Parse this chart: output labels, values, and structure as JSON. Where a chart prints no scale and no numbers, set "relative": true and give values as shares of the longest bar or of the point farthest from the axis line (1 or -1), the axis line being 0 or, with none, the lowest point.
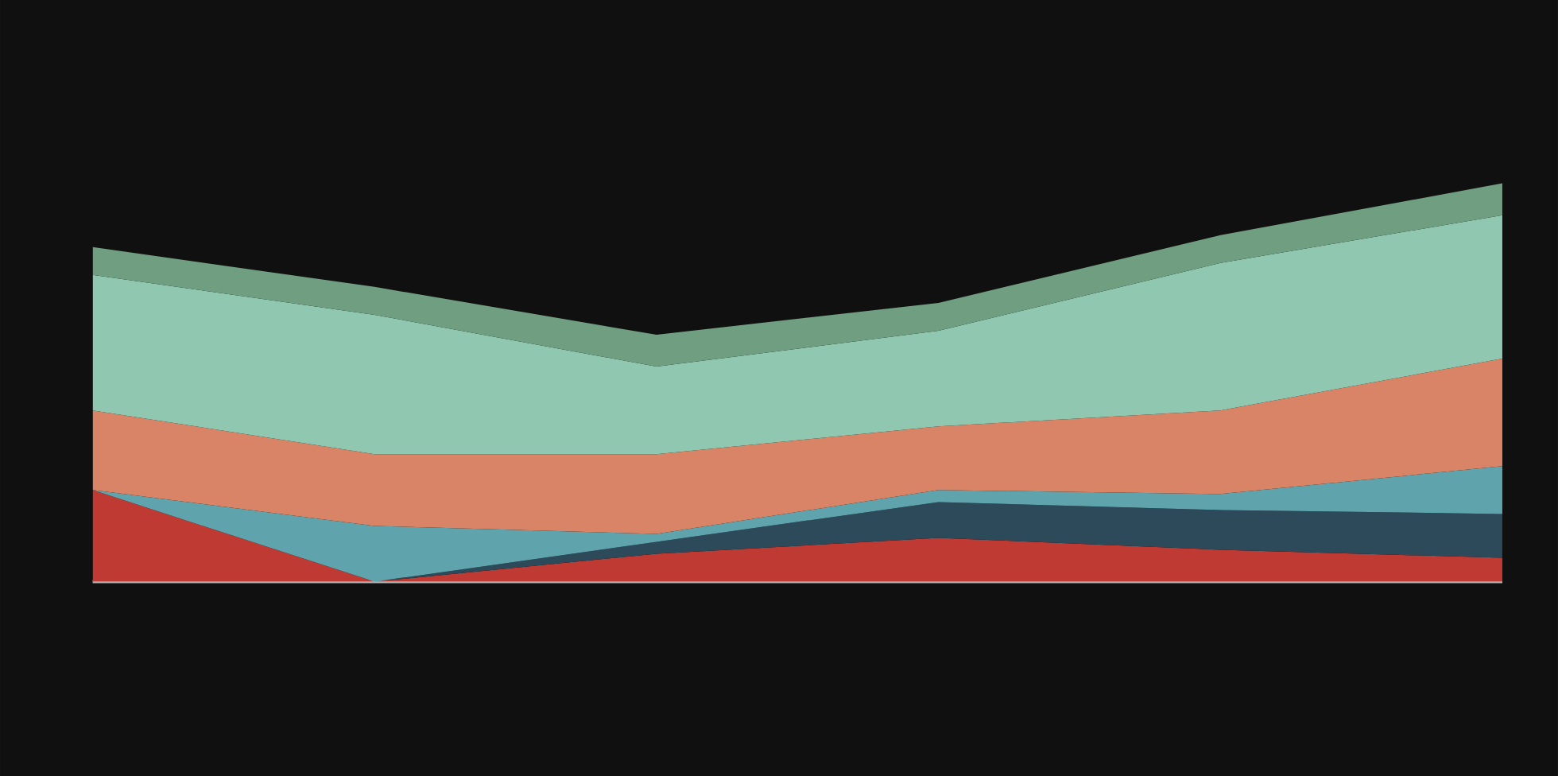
{
  "chart_data": {
    "type": "area",
    "stacked": true,
    "relative": true,
    "categories": [
      null,
      null,
      null,
      null,
      null,
      null
    ],
    "series": [
      {
        "color": "#bf3a33",
        "values": [
          0.23,
          0,
          0.07,
          0.11,
          0.08,
          0.06
        ]
      },
      {
        "color": "#2c4a5a",
        "values": [
          null,
          0,
          0.03,
          0.09,
          0.1,
          0.11
        ]
      },
      {
        "color": "#5fa3ad",
        "values": [
          0,
          0.14,
          0.02,
          0.03,
          0.04,
          0.12
        ]
      },
      {
        "color": "#d98466",
        "values": [
          0.2,
          0.18,
          0.2,
          0.16,
          0.21,
          0.27
        ]
      },
      {
        "color": "#8fc7b0",
        "values": [
          0.34,
          0.35,
          0.22,
          0.24,
          0.37,
          0.36
        ]
      },
      {
        "color": "#6f9e80",
        "values": [
          0.07,
          0.07,
          0.08,
          0.07,
          0.07,
          0.08
        ]
      }
    ]
  }
}
